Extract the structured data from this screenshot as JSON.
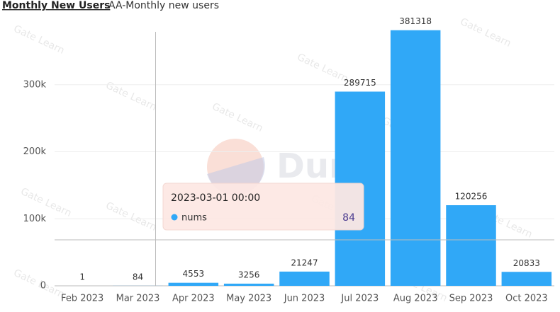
{
  "chart_data": {
    "type": "bar",
    "title": "Monthly New Users",
    "subtitle": "AA-Monthly new users",
    "categories": [
      "Feb 2023",
      "Mar 2023",
      "Apr 2023",
      "May 2023",
      "Jun 2023",
      "Jul 2023",
      "Aug 2023",
      "Sep 2023",
      "Oct 2023"
    ],
    "series": [
      {
        "name": "nums",
        "color": "#30a8f7",
        "values": [
          1,
          84,
          4553,
          3256,
          21247,
          289715,
          381318,
          120256,
          20833
        ]
      }
    ],
    "ylim": [
      0,
      400000
    ],
    "yticks": [
      0,
      {
        "value": 100000,
        "label": "100k"
      },
      {
        "value": 200000,
        "label": "200k"
      },
      {
        "value": 300000,
        "label": "300k"
      }
    ],
    "grid": true,
    "tooltip": {
      "title": "2023-03-01 00:00",
      "series_index": 0,
      "category_index": 1
    },
    "watermark": "Dune",
    "overlay_watermark": "Gate Learn"
  }
}
